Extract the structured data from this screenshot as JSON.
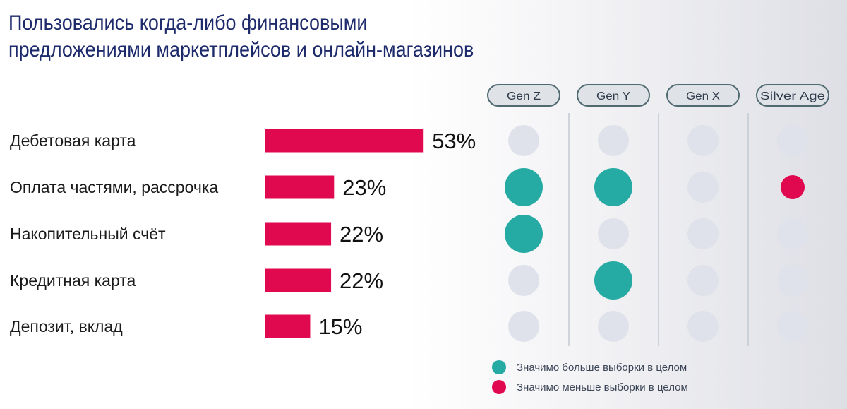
{
  "title": {
    "line1": "Пользовались когда-либо финансовыми",
    "line2": "предложениями маркетплейсов и онлайн-магазинов"
  },
  "chart_data": {
    "type": "bar",
    "orientation": "horizontal",
    "categories": [
      "Дебетовая карта",
      "Оплата частями, рассрочка",
      "Накопительный счёт",
      "Кредитная карта",
      "Депозит, вклад"
    ],
    "values": [
      53,
      23,
      22,
      22,
      15
    ],
    "value_labels": [
      "53%",
      "23%",
      "22%",
      "22%",
      "15%"
    ],
    "unit": "%",
    "bar_color": "#e0094f",
    "generations": [
      "Gen Z",
      "Gen Y",
      "Gen X",
      "Silver Age"
    ],
    "significance": [
      [
        "neutral",
        "neutral",
        "neutral",
        "neutral"
      ],
      [
        "higher",
        "higher",
        "neutral",
        "lower"
      ],
      [
        "higher",
        "neutral",
        "neutral",
        "neutral"
      ],
      [
        "neutral",
        "higher",
        "neutral",
        "neutral"
      ],
      [
        "neutral",
        "neutral",
        "neutral",
        "neutral"
      ]
    ],
    "legend": [
      {
        "key": "higher",
        "label": "Значимо больше выборки в целом",
        "color": "#26aaa4"
      },
      {
        "key": "lower",
        "label": "Значимо меньше выборки в целом",
        "color": "#e0094f"
      }
    ],
    "neutral_color": "#dfe2ea",
    "legend_position": "bottom-right",
    "grid": false
  }
}
